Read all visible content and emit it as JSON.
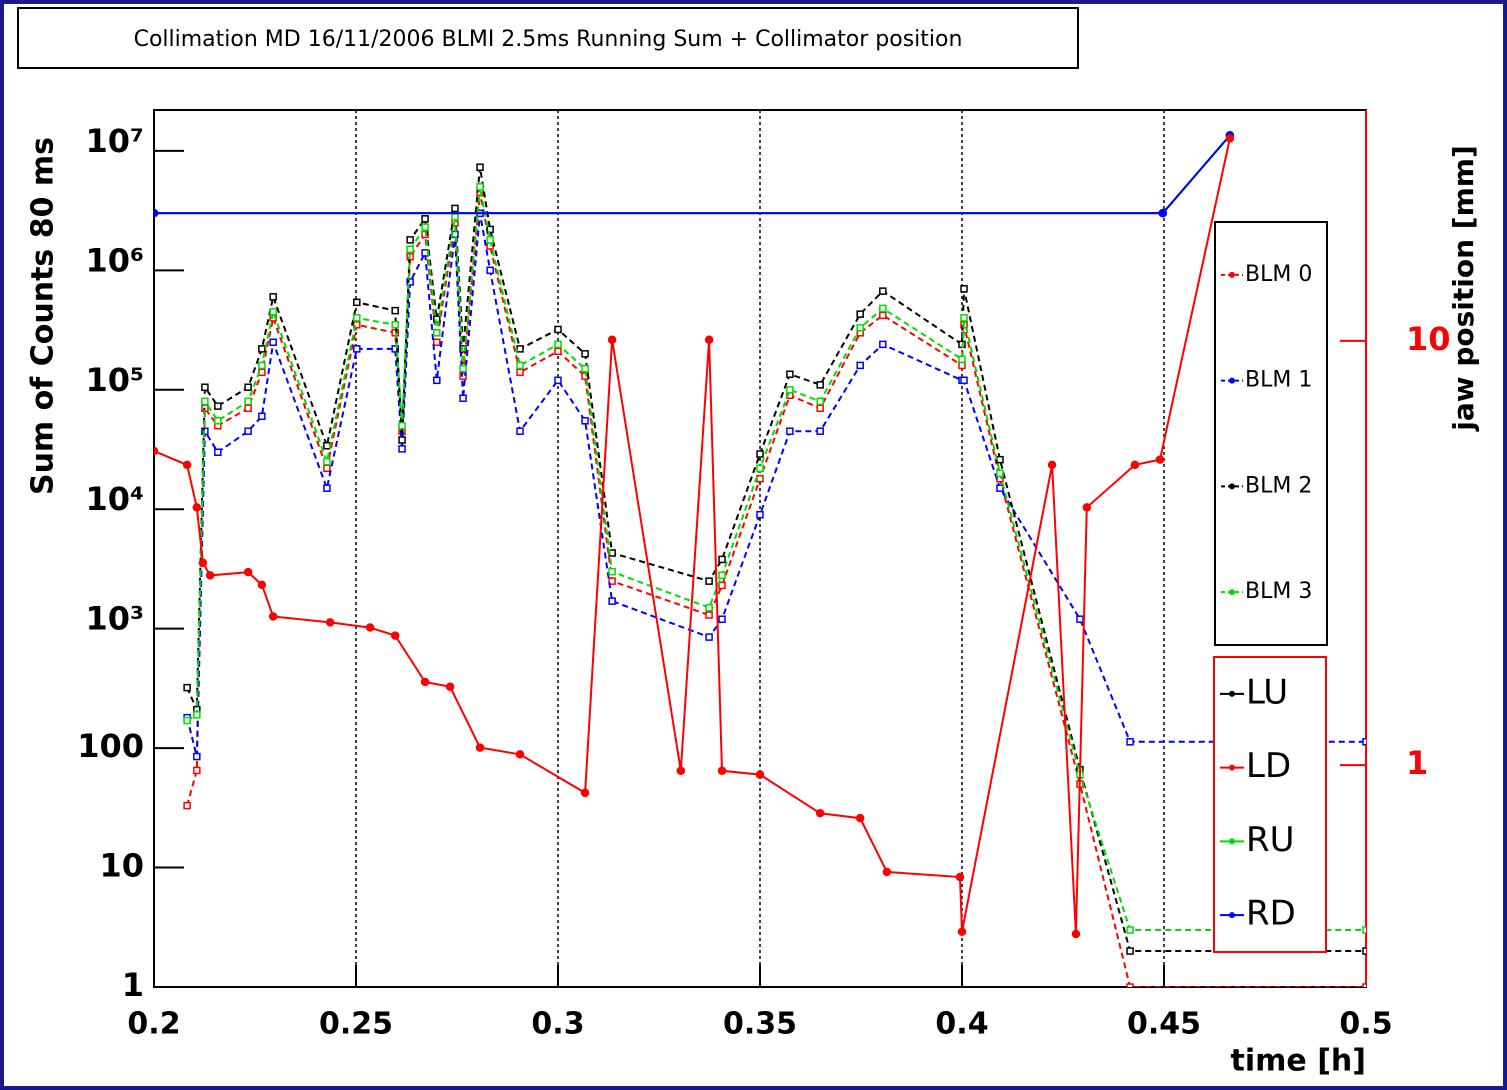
{
  "chart_data": {
    "type": "line",
    "title": "Collimation MD 16/11/2006 BLMI 2.5ms Running Sum + Collimator position",
    "xlabel": "time [h]",
    "ylabel": "Sum of Counts 80 ms",
    "y2label": "jaw position [mm]",
    "log_y": true,
    "log_y2": true,
    "xgrid": true,
    "xlim": [
      0.2,
      0.5
    ],
    "xticks": [
      0.2,
      0.25,
      0.3,
      0.35,
      0.4,
      0.45,
      0.5
    ],
    "ylim": [
      1,
      22000000
    ],
    "yticks": [
      1,
      10,
      100,
      {
        "value": 1000,
        "label": "10³"
      },
      {
        "value": 10000,
        "label": "10⁴"
      },
      {
        "value": 100000,
        "label": "10⁵"
      },
      {
        "value": 1000000,
        "label": "10⁶"
      },
      {
        "value": 10000000,
        "label": "10⁷"
      }
    ],
    "y2lim": [
      0.3,
      35
    ],
    "y2ticks": [
      1,
      10
    ],
    "y2color": "#ff0000",
    "x": [
      0.2082,
      0.2106,
      0.2126,
      0.2158,
      0.2233,
      0.2267,
      0.2295,
      0.2428,
      0.2502,
      0.2597,
      0.2614,
      0.2634,
      0.2671,
      0.27,
      0.2745,
      0.2765,
      0.2807,
      0.2832,
      0.2906,
      0.3,
      0.3067,
      0.3134,
      0.3374,
      0.3406,
      0.35,
      0.3574,
      0.3649,
      0.3748,
      0.3804,
      0.4,
      0.4005,
      0.4094,
      0.4292,
      0.4416,
      0.5
    ],
    "series": [
      {
        "name": "BLM 0",
        "color": "#ff0000",
        "dash": true,
        "axis": "y",
        "values": [
          33,
          65,
          70000,
          50000,
          70000,
          140000,
          400000,
          22000,
          350000,
          300000,
          45000,
          1300000,
          2000000,
          250000,
          2500000,
          130000,
          4500000,
          1600000,
          140000,
          210000,
          130000,
          2500,
          1300,
          2300,
          18000,
          90000,
          70000,
          300000,
          420000,
          160000,
          350000,
          18000,
          50,
          1,
          1
        ]
      },
      {
        "name": "BLM 1",
        "color": "#0000ff",
        "dash": true,
        "axis": "y",
        "values": [
          180,
          85,
          45000,
          30000,
          45000,
          60000,
          250000,
          15000,
          220000,
          220000,
          32000,
          800000,
          1400000,
          120000,
          2000000,
          85000,
          3000000,
          1000000,
          45000,
          120000,
          55000,
          1700,
          850,
          1200,
          9000,
          45000,
          45000,
          160000,
          240000,
          120000,
          120000,
          15000,
          1200,
          113,
          113
        ]
      },
      {
        "name": "BLM 2",
        "color": "#000000",
        "dash": true,
        "axis": "y",
        "values": [
          321,
          210,
          105000,
          73000,
          105000,
          220000,
          600000,
          34000,
          540000,
          460000,
          38000,
          1800000,
          2700000,
          390000,
          3300000,
          220000,
          7300000,
          2200000,
          220000,
          320000,
          200000,
          4300,
          2500,
          3800,
          29000,
          135000,
          110000,
          430000,
          670000,
          240000,
          700000,
          26000,
          66,
          2,
          2
        ]
      },
      {
        "name": "BLM 3",
        "color": "#00dd00",
        "dash": true,
        "axis": "y",
        "values": [
          170,
          190,
          80000,
          55000,
          80000,
          160000,
          450000,
          25000,
          400000,
          350000,
          50000,
          1500000,
          2300000,
          300000,
          2800000,
          150000,
          5000000,
          1800000,
          160000,
          240000,
          150000,
          3000,
          1500,
          2800,
          22000,
          100000,
          80000,
          330000,
          480000,
          180000,
          400000,
          20000,
          60,
          3,
          3
        ]
      },
      {
        "name": "LU",
        "color": "#000000",
        "dash": false,
        "axis": "y2",
        "x": [
          0.2,
          0.4497,
          0.4663
        ],
        "values": [
          20,
          20,
          30.5
        ]
      },
      {
        "name": "LD",
        "color": "#ff0000",
        "dash": false,
        "axis": "y2",
        "x": [
          0.2,
          0.2082,
          0.2106,
          0.2121,
          0.2139,
          0.2233,
          0.2267,
          0.2295,
          0.2436,
          0.2535,
          0.2597,
          0.2671,
          0.2733,
          0.2807,
          0.2906,
          0.3067,
          0.3134,
          0.3304,
          0.3374,
          0.3406,
          0.35,
          0.3649,
          0.3748,
          0.3814,
          0.3995,
          0.4,
          0.4223,
          0.4282,
          0.4309,
          0.4428,
          0.449,
          0.4663
        ],
        "values": [
          5.5,
          5.1,
          4.05,
          3.0,
          2.8,
          2.85,
          2.66,
          2.24,
          2.17,
          2.11,
          2.02,
          1.57,
          1.53,
          1.1,
          1.06,
          0.86,
          10.06,
          0.97,
          10.06,
          0.97,
          0.95,
          0.77,
          0.75,
          0.56,
          0.545,
          0.405,
          5.1,
          0.4,
          4.05,
          5.1,
          5.25,
          30
        ]
      },
      {
        "name": "RU",
        "color": "#00dd00",
        "dash": false,
        "axis": "y2",
        "x": [
          0.2,
          0.4497,
          0.4663
        ],
        "values": [
          20,
          20,
          30.5
        ]
      },
      {
        "name": "RD",
        "color": "#0000ff",
        "dash": false,
        "axis": "y2",
        "x": [
          0.2,
          0.4497,
          0.4663
        ],
        "values": [
          20,
          20,
          30.5
        ]
      }
    ]
  }
}
